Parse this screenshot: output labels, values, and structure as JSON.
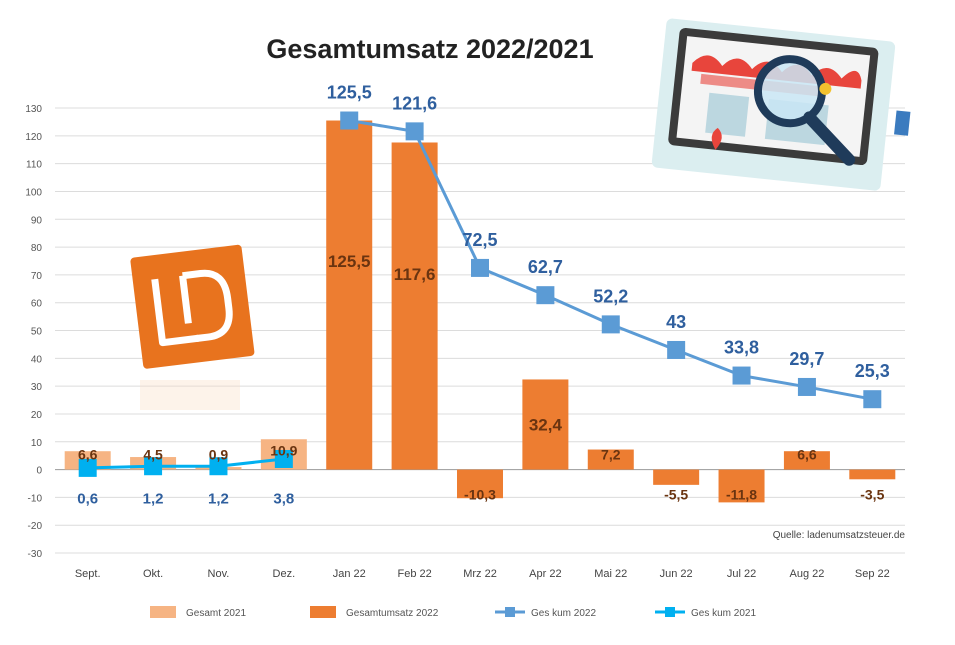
{
  "chart_data": {
    "type": "bar",
    "title": "Gesamtumsatz 2022/2021",
    "source": "Quelle: ladenumsatzsteuer.de",
    "ylim": [
      -30,
      130
    ],
    "yticks": [
      -30,
      -20,
      -10,
      0,
      10,
      20,
      30,
      40,
      50,
      60,
      70,
      80,
      90,
      100,
      110,
      120,
      130
    ],
    "grid": true,
    "legend_position": "bottom",
    "categories": [
      "Sept.",
      "Okt.",
      "Nov.",
      "Dez.",
      "Jan 22",
      "Feb 22",
      "Mrz 22",
      "Apr 22",
      "Mai 22",
      "Jun 22",
      "Jul 22",
      "Aug 22",
      "Sep 22"
    ],
    "series": [
      {
        "name": "Gesamt 2021",
        "kind": "bar",
        "values": [
          6.6,
          4.5,
          0.9,
          10.9,
          null,
          null,
          null,
          null,
          null,
          null,
          null,
          null,
          null
        ],
        "color": "#f6b483"
      },
      {
        "name": "Gesamtumsatz 2022",
        "kind": "bar",
        "values": [
          null,
          null,
          null,
          null,
          125.5,
          117.6,
          -10.3,
          32.4,
          7.2,
          -5.5,
          -11.8,
          6.6,
          -3.5
        ],
        "color": "#ed7d31"
      },
      {
        "name": "Ges kum 2022",
        "kind": "line",
        "values": [
          null,
          null,
          null,
          null,
          125.5,
          121.6,
          72.5,
          62.7,
          52.2,
          43.0,
          33.8,
          29.7,
          25.3
        ],
        "color": "#5b9bd5"
      },
      {
        "name": "Ges kum 2021",
        "kind": "line",
        "values": [
          0.6,
          1.2,
          1.2,
          3.8,
          null,
          null,
          null,
          null,
          null,
          null,
          null,
          null,
          null
        ],
        "color": "#00b0f0"
      }
    ]
  },
  "decorations": {
    "logo_icon": "ld-logo-icon",
    "store_search_icon": "store-magnifier-icon"
  }
}
